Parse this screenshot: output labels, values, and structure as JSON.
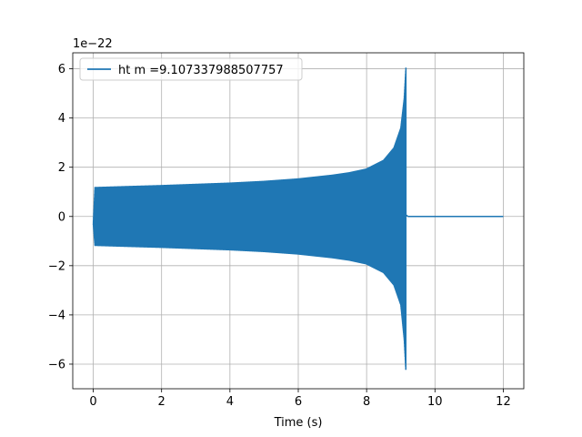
{
  "chart_data": {
    "type": "line",
    "title": "",
    "xlabel": "Time (s)",
    "ylabel": "",
    "y_offset_label": "1e−22",
    "xlim": [
      -0.6,
      12.6
    ],
    "ylim": [
      -7.0,
      6.65
    ],
    "xticks": [
      0,
      2,
      4,
      6,
      8,
      10,
      12
    ],
    "xtick_labels": [
      "0",
      "2",
      "4",
      "6",
      "8",
      "10",
      "12"
    ],
    "yticks": [
      -6,
      -4,
      -2,
      0,
      2,
      4,
      6
    ],
    "ytick_labels": [
      "−6",
      "−4",
      "−2",
      "0",
      "2",
      "4",
      "6"
    ],
    "grid": true,
    "legend_position": "upper-left",
    "series": [
      {
        "name": "ht m =9.107337988507757",
        "color": "#1f77b4",
        "signal": "chirp",
        "envelope": {
          "t": [
            0.0,
            0.05,
            1.0,
            2.0,
            3.0,
            4.0,
            5.0,
            6.0,
            7.0,
            7.5,
            8.0,
            8.5,
            8.8,
            9.0,
            9.1,
            9.15
          ],
          "upper": [
            -0.3,
            1.2,
            1.24,
            1.28,
            1.33,
            1.38,
            1.45,
            1.55,
            1.7,
            1.8,
            1.95,
            2.3,
            2.8,
            3.6,
            4.8,
            6.05
          ],
          "lower": [
            -0.3,
            -1.2,
            -1.24,
            -1.28,
            -1.33,
            -1.38,
            -1.45,
            -1.55,
            -1.7,
            -1.8,
            -1.95,
            -2.3,
            -2.8,
            -3.6,
            -5.0,
            -6.3
          ]
        },
        "ringdown_x": [
          9.15,
          9.2
        ],
        "ringdown_y": [
          0.0,
          0.05
        ],
        "tail_x": [
          9.2,
          12.0
        ],
        "tail_y": [
          0.0,
          0.0
        ]
      }
    ]
  }
}
